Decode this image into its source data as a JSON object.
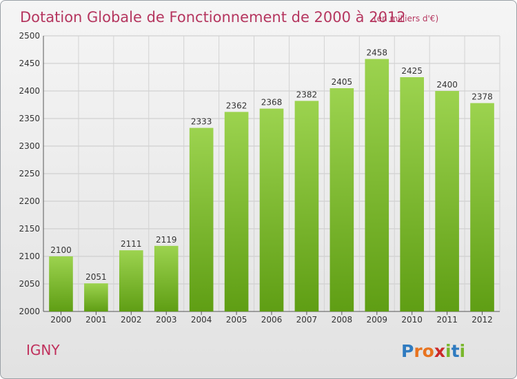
{
  "chart_data": {
    "type": "bar",
    "title": "Dotation Globale de Fonctionnement de 2000 à 2012",
    "subtitle": "(en milliers d'€)",
    "categories": [
      "2000",
      "2001",
      "2002",
      "2003",
      "2004",
      "2005",
      "2006",
      "2007",
      "2008",
      "2009",
      "2010",
      "2011",
      "2012"
    ],
    "values": [
      2100,
      2051,
      2111,
      2119,
      2333,
      2362,
      2368,
      2382,
      2405,
      2458,
      2425,
      2400,
      2378
    ],
    "ylim": [
      2000,
      2500
    ],
    "yticks": [
      "2000",
      "2050",
      "2100",
      "2150",
      "2200",
      "2250",
      "2300",
      "2350",
      "2400",
      "2450",
      "2500"
    ],
    "grid": true,
    "bar_color_top": "#9cd34f",
    "bar_color_bottom": "#5f9e14"
  },
  "commune": "IGNY",
  "logo": {
    "letters": [
      "P",
      "r",
      "o",
      "x",
      "i",
      "t",
      "i"
    ],
    "colors": [
      "#2f7bc0",
      "#e8731f",
      "#e8731f",
      "#cc2a2a",
      "#79b72c",
      "#2f7bc0",
      "#79b72c"
    ]
  }
}
